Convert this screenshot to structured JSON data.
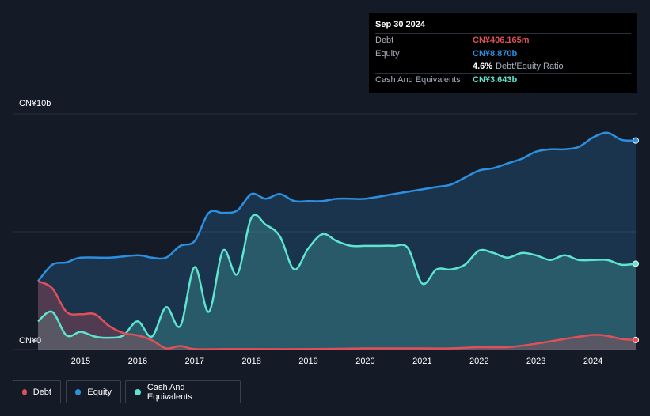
{
  "tooltip": {
    "date": "Sep 30 2024",
    "debt_label": "Debt",
    "debt_value": "CN¥406.165m",
    "equity_label": "Equity",
    "equity_value": "CN¥8.870b",
    "ratio_value": "4.6%",
    "ratio_label": "Debt/Equity Ratio",
    "cash_label": "Cash And Equivalents",
    "cash_value": "CN¥3.643b"
  },
  "legend": {
    "debt": "Debt",
    "equity": "Equity",
    "cash": "Cash And Equivalents"
  },
  "colors": {
    "debt": "#e0505a",
    "equity": "#2d8fe0",
    "cash": "#5de5cf",
    "background": "#151b26"
  },
  "chart_data": {
    "type": "area",
    "y_unit": "CN¥ billions",
    "ylim": [
      0,
      10
    ],
    "y_tick_labels": [
      "CN¥0",
      "CN¥10b"
    ],
    "x_tick_labels": [
      "2015",
      "2016",
      "2017",
      "2018",
      "2019",
      "2020",
      "2021",
      "2022",
      "2023",
      "2024"
    ],
    "x_range": [
      2014.25,
      2024.75
    ],
    "series": [
      {
        "name": "Debt",
        "x": [
          2014.25,
          2014.5,
          2014.75,
          2015.0,
          2015.25,
          2015.5,
          2015.75,
          2016.0,
          2016.25,
          2016.5,
          2016.75,
          2017.0,
          2017.5,
          2018.0,
          2019.0,
          2020.0,
          2021.0,
          2021.5,
          2022.0,
          2022.5,
          2023.0,
          2023.5,
          2024.0,
          2024.25,
          2024.5,
          2024.75
        ],
        "values": [
          2.9,
          2.6,
          1.6,
          1.5,
          1.5,
          1.0,
          0.7,
          0.6,
          0.4,
          0.05,
          0.15,
          0.02,
          0.02,
          0.02,
          0.02,
          0.05,
          0.05,
          0.05,
          0.1,
          0.1,
          0.25,
          0.45,
          0.62,
          0.58,
          0.45,
          0.406
        ]
      },
      {
        "name": "Equity",
        "x": [
          2014.25,
          2014.5,
          2014.75,
          2015.0,
          2015.5,
          2016.0,
          2016.25,
          2016.5,
          2016.75,
          2017.0,
          2017.25,
          2017.5,
          2017.75,
          2018.0,
          2018.25,
          2018.5,
          2018.75,
          2019.0,
          2019.25,
          2019.5,
          2019.75,
          2020.0,
          2020.5,
          2020.75,
          2021.0,
          2021.25,
          2021.5,
          2021.75,
          2022.0,
          2022.25,
          2022.5,
          2022.75,
          2023.0,
          2023.25,
          2023.5,
          2023.75,
          2024.0,
          2024.25,
          2024.5,
          2024.75
        ],
        "values": [
          2.9,
          3.6,
          3.7,
          3.9,
          3.9,
          4.0,
          3.9,
          3.9,
          4.4,
          4.6,
          5.8,
          5.8,
          5.9,
          6.6,
          6.4,
          6.6,
          6.3,
          6.3,
          6.3,
          6.4,
          6.4,
          6.4,
          6.6,
          6.7,
          6.8,
          6.9,
          7.0,
          7.3,
          7.6,
          7.7,
          7.9,
          8.1,
          8.4,
          8.5,
          8.5,
          8.6,
          9.0,
          9.2,
          8.9,
          8.87
        ]
      },
      {
        "name": "Cash And Equivalents",
        "x": [
          2014.25,
          2014.5,
          2014.75,
          2015.0,
          2015.25,
          2015.5,
          2015.75,
          2016.0,
          2016.25,
          2016.5,
          2016.75,
          2017.0,
          2017.25,
          2017.5,
          2017.75,
          2018.0,
          2018.25,
          2018.5,
          2018.75,
          2019.0,
          2019.25,
          2019.5,
          2019.75,
          2020.0,
          2020.25,
          2020.5,
          2020.75,
          2021.0,
          2021.25,
          2021.5,
          2021.75,
          2022.0,
          2022.25,
          2022.5,
          2022.75,
          2023.0,
          2023.25,
          2023.5,
          2023.75,
          2024.0,
          2024.25,
          2024.5,
          2024.75
        ],
        "values": [
          1.2,
          1.6,
          0.6,
          0.75,
          0.55,
          0.5,
          0.6,
          1.2,
          0.55,
          1.8,
          1.0,
          3.5,
          1.6,
          4.2,
          3.2,
          5.6,
          5.3,
          4.8,
          3.4,
          4.3,
          4.9,
          4.6,
          4.4,
          4.4,
          4.4,
          4.4,
          4.3,
          2.8,
          3.4,
          3.4,
          3.6,
          4.2,
          4.1,
          3.9,
          4.1,
          4.0,
          3.8,
          4.0,
          3.8,
          3.8,
          3.8,
          3.6,
          3.643
        ]
      }
    ],
    "grid": true,
    "legend_position": "bottom-left"
  }
}
